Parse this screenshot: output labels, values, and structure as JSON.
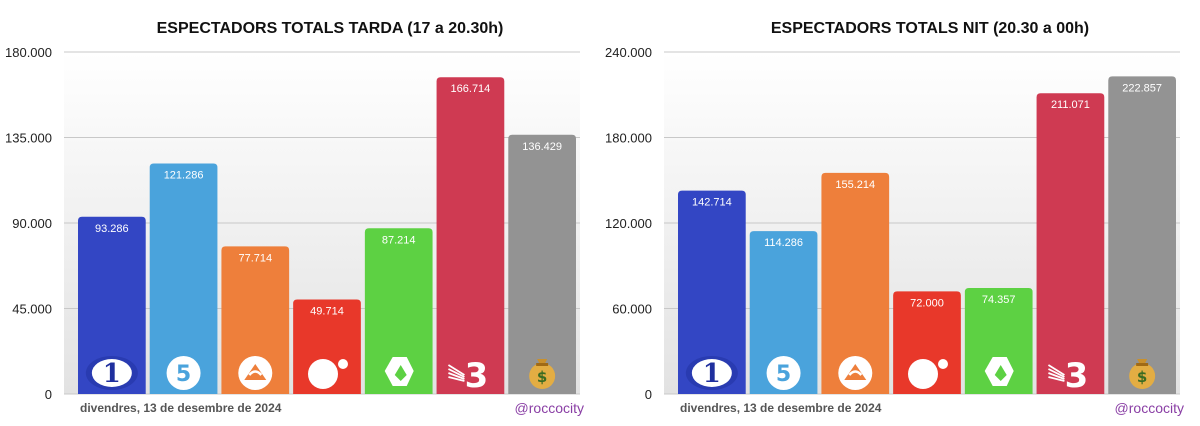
{
  "chart_data": [
    {
      "type": "bar",
      "title": "ESPECTADORS TOTALS TARDA (17 a 20.30h)",
      "categories": [
        "La 1",
        "Telecinco",
        "Antena 3",
        "Cuatro",
        "laSexta",
        "3Cat",
        "Resta"
      ],
      "category_icons": [
        "la1-logo-icon",
        "telecinco-logo-icon",
        "antena3-logo-icon",
        "cuatro-logo-icon",
        "lasexta-logo-icon",
        "3cat-logo-icon",
        "money-bag-icon"
      ],
      "values": [
        93286,
        121286,
        77714,
        49714,
        87214,
        166714,
        136429
      ],
      "value_labels": [
        "93.286",
        "121.286",
        "77.714",
        "49.714",
        "87.214",
        "166.714",
        "136.429"
      ],
      "colors": [
        "#3346c4",
        "#4aa3dc",
        "#ee7f3b",
        "#e8382a",
        "#5dd143",
        "#cf3a52",
        "#939393"
      ],
      "ylim": [
        0,
        180000
      ],
      "yticks": [
        0,
        45000,
        90000,
        135000,
        180000
      ],
      "ytick_labels": [
        "0",
        "45.000",
        "90.000",
        "135.000",
        "180.000"
      ],
      "grid": true,
      "date": "divendres, 13 de desembre de 2024",
      "handle": "@roccocity"
    },
    {
      "type": "bar",
      "title": "ESPECTADORS TOTALS NIT (20.30 a 00h)",
      "categories": [
        "La 1",
        "Telecinco",
        "Antena 3",
        "Cuatro",
        "laSexta",
        "3Cat",
        "Resta"
      ],
      "category_icons": [
        "la1-logo-icon",
        "telecinco-logo-icon",
        "antena3-logo-icon",
        "cuatro-logo-icon",
        "lasexta-logo-icon",
        "3cat-logo-icon",
        "money-bag-icon"
      ],
      "values": [
        142714,
        114286,
        155214,
        72000,
        74357,
        211071,
        222857
      ],
      "value_labels": [
        "142.714",
        "114.286",
        "155.214",
        "72.000",
        "74.357",
        "211.071",
        "222.857"
      ],
      "colors": [
        "#3346c4",
        "#4aa3dc",
        "#ee7f3b",
        "#e8382a",
        "#5dd143",
        "#cf3a52",
        "#939393"
      ],
      "ylim": [
        0,
        240000
      ],
      "yticks": [
        0,
        60000,
        120000,
        180000,
        240000
      ],
      "ytick_labels": [
        "0",
        "60.000",
        "120.000",
        "180.000",
        "240.000"
      ],
      "grid": true,
      "date": "divendres, 13 de desembre de 2024",
      "handle": "@roccocity"
    }
  ]
}
